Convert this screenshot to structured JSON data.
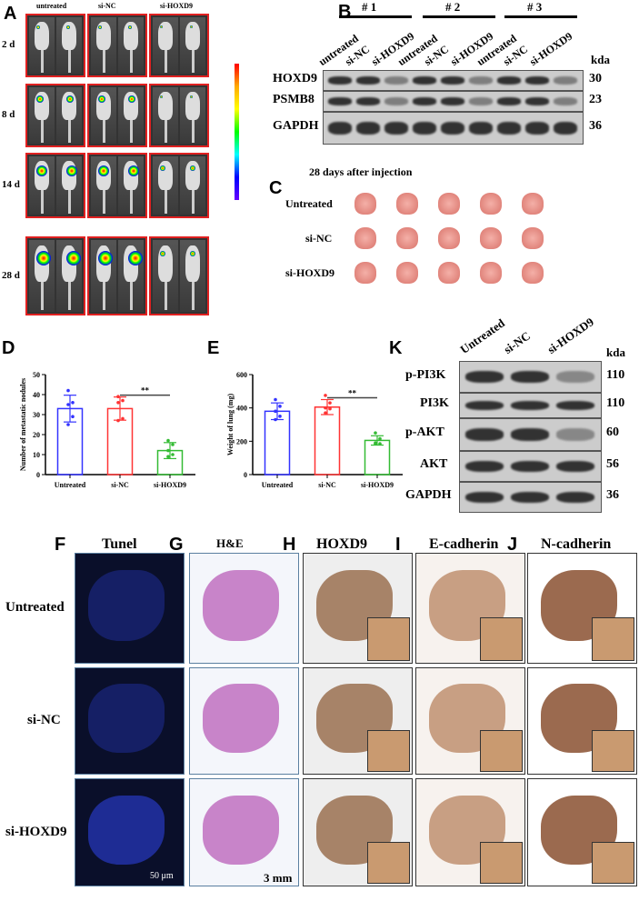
{
  "panel_labels": {
    "a": "A",
    "b": "B",
    "c": "C",
    "d": "D",
    "e": "E",
    "f": "F",
    "g": "G",
    "h": "H",
    "i": "I",
    "j": "J",
    "k": "K"
  },
  "panel_a": {
    "groups": [
      "untreated",
      "si-NC",
      "si-HOXD9"
    ],
    "days": [
      "2 d",
      "8 d",
      "14 d",
      "28 d"
    ]
  },
  "panel_b": {
    "sets": [
      "# 1",
      "# 2",
      "# 3"
    ],
    "lanes": [
      "untreated",
      "si-NC",
      "si-HOXD9",
      "untreated",
      "si-NC",
      "si-HOXD9",
      "untreated",
      "si-NC",
      "si-HOXD9"
    ],
    "unit": "kda",
    "rows": [
      {
        "name": "HOXD9",
        "kda": "30"
      },
      {
        "name": "PSMB8",
        "kda": "23"
      },
      {
        "name": "GAPDH",
        "kda": "36"
      }
    ]
  },
  "panel_c": {
    "title": "28 days after injection",
    "rows": [
      "Untreated",
      "si-NC",
      "si-HOXD9"
    ]
  },
  "panel_k": {
    "lanes": [
      "Untreated",
      "si-NC",
      "si-HOXD9"
    ],
    "unit": "kda",
    "rows": [
      {
        "name": "p-PI3K",
        "kda": "110"
      },
      {
        "name": "PI3K",
        "kda": "110"
      },
      {
        "name": "p-AKT",
        "kda": "60"
      },
      {
        "name": "AKT",
        "kda": "56"
      },
      {
        "name": "GAPDH",
        "kda": "36"
      }
    ]
  },
  "histology": {
    "columns": [
      "Tunel",
      "H&E",
      "HOXD9",
      "E-cadherin",
      "N-cadherin"
    ],
    "rows": [
      "Untreated",
      "si-NC",
      "si-HOXD9"
    ],
    "scale_tunel": "50 μm",
    "scale_he": "3 mm"
  },
  "chart_data": [
    {
      "type": "bar",
      "panel": "D",
      "categories": [
        "Untreated",
        "si-NC",
        "si-HOXD9"
      ],
      "values": [
        33,
        33,
        12
      ],
      "errors": [
        6.7,
        5.8,
        4
      ],
      "points": [
        [
          42,
          36,
          35,
          29,
          25
        ],
        [
          39,
          37,
          36,
          28,
          27
        ],
        [
          17,
          15,
          12,
          10,
          9
        ]
      ],
      "colors": [
        "#3333ff",
        "#ff3333",
        "#33bb33"
      ],
      "ylabel": "Number of metastatic nodules",
      "ylim": [
        0,
        50
      ],
      "yticks": [
        0,
        10,
        20,
        30,
        40,
        50
      ],
      "significance": {
        "between": [
          1,
          2
        ],
        "label": "**"
      }
    },
    {
      "type": "bar",
      "panel": "E",
      "categories": [
        "Untreated",
        "si-NC",
        "si-HOXD9"
      ],
      "values": [
        380,
        405,
        205
      ],
      "errors": [
        50,
        45,
        28
      ],
      "points": [
        [
          450,
          410,
          380,
          350,
          330
        ],
        [
          475,
          430,
          400,
          395,
          370
        ],
        [
          250,
          215,
          190,
          185,
          185
        ]
      ],
      "colors": [
        "#3333ff",
        "#ff3333",
        "#33bb33"
      ],
      "ylabel": "Weight of lung (mg)",
      "ylim": [
        0,
        600
      ],
      "yticks": [
        0,
        200,
        400,
        600
      ],
      "significance": {
        "between": [
          1,
          2
        ],
        "label": "**"
      }
    }
  ]
}
